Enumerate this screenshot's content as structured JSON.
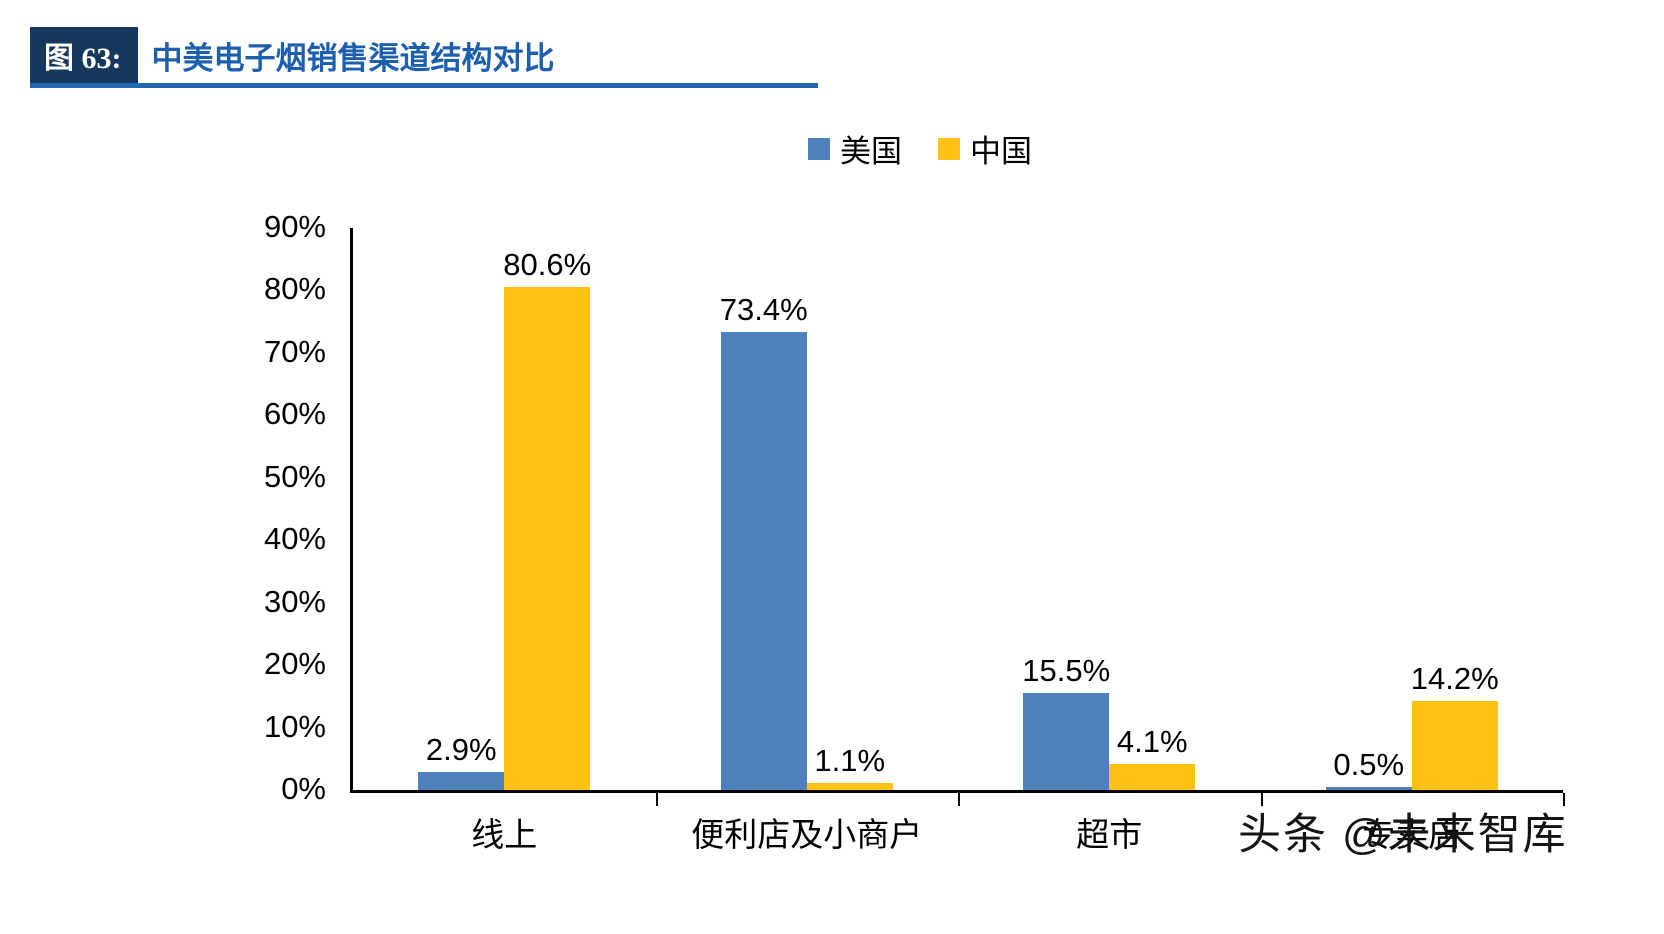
{
  "header": {
    "figure_label": "图 63:",
    "title": "中美电子烟销售渠道结构对比",
    "accent_color": "#2166AE",
    "badge_color": "#17375D"
  },
  "legend": [
    {
      "label": "美国",
      "color": "#4E80BC"
    },
    {
      "label": "中国",
      "color": "#FFC213"
    }
  ],
  "chart_data": {
    "type": "bar",
    "title": "中美电子烟销售渠道结构对比",
    "categories": [
      "线上",
      "便利店及小商户",
      "超市",
      "专卖店"
    ],
    "series": [
      {
        "name": "美国",
        "color": "#4E80BC",
        "values": [
          2.9,
          73.4,
          15.5,
          0.5
        ]
      },
      {
        "name": "中国",
        "color": "#FFC213",
        "values": [
          80.6,
          1.1,
          4.1,
          14.2
        ]
      }
    ],
    "xlabel": "",
    "ylabel": "",
    "ylim": [
      0,
      90
    ],
    "ytick_step": 10,
    "ytick_labels": [
      "0%",
      "10%",
      "20%",
      "30%",
      "40%",
      "50%",
      "60%",
      "70%",
      "80%",
      "90%"
    ],
    "grid": false,
    "legend_position": "top-center",
    "data_labels": [
      "2.9%",
      "80.6%",
      "73.4%",
      "1.1%",
      "15.5%",
      "4.1%",
      "0.5%",
      "14.2%"
    ]
  },
  "watermark": {
    "text": "头条 @未来智库"
  }
}
